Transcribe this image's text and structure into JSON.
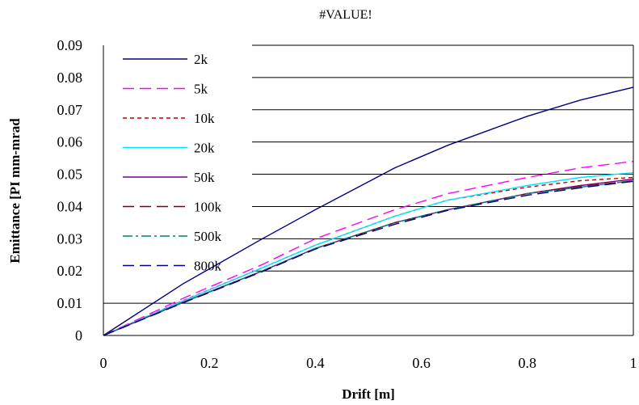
{
  "chart_data": {
    "type": "line",
    "title": "#VALUE!",
    "xlabel": "Drift [m]",
    "ylabel": "Emittance [PI mm-mrad",
    "xlim": [
      0,
      1
    ],
    "ylim": [
      0,
      0.09
    ],
    "x_ticks": [
      "0",
      "0.2",
      "0.4",
      "0.6",
      "0.8",
      "1"
    ],
    "y_ticks": [
      "0",
      "0.01",
      "0.02",
      "0.03",
      "0.04",
      "0.05",
      "0.06",
      "0.07",
      "0.08",
      "0.09"
    ],
    "grid": "horizontal",
    "legend_position": "top-left",
    "x": [
      0,
      0.15,
      0.3,
      0.4,
      0.55,
      0.65,
      0.8,
      0.9,
      1.0
    ],
    "series": [
      {
        "name": "2k",
        "color": "#000080",
        "dash": "solid",
        "values": [
          0,
          0.016,
          0.03,
          0.039,
          0.052,
          0.059,
          0.068,
          0.073,
          0.077
        ]
      },
      {
        "name": "5k",
        "color": "#ff00ff",
        "dash": "long-dash",
        "values": [
          0,
          0.0115,
          0.022,
          0.03,
          0.039,
          0.044,
          0.049,
          0.052,
          0.054
        ]
      },
      {
        "name": "10k",
        "color": "#c00000",
        "dash": "short-dash",
        "values": [
          0,
          0.0108,
          0.021,
          0.028,
          0.037,
          0.042,
          0.046,
          0.048,
          0.049
        ]
      },
      {
        "name": "20k",
        "color": "#00e5ff",
        "dash": "solid",
        "values": [
          0,
          0.0107,
          0.021,
          0.028,
          0.037,
          0.042,
          0.0465,
          0.049,
          0.0505
        ]
      },
      {
        "name": "50k",
        "color": "#800080",
        "dash": "solid",
        "values": [
          0,
          0.0103,
          0.02,
          0.027,
          0.035,
          0.039,
          0.044,
          0.0465,
          0.0485
        ]
      },
      {
        "name": "100k",
        "color": "#800000",
        "dash": "long-dash",
        "values": [
          0,
          0.0102,
          0.02,
          0.027,
          0.035,
          0.039,
          0.044,
          0.0462,
          0.048
        ]
      },
      {
        "name": "500k",
        "color": "#008080",
        "dash": "dash-dot",
        "values": [
          0,
          0.0102,
          0.02,
          0.027,
          0.035,
          0.039,
          0.044,
          0.046,
          0.048
        ]
      },
      {
        "name": "800k",
        "color": "#000080",
        "dash": "long-dash",
        "values": [
          0,
          0.0101,
          0.0198,
          0.0268,
          0.0345,
          0.0388,
          0.0435,
          0.0458,
          0.0478
        ]
      }
    ]
  }
}
